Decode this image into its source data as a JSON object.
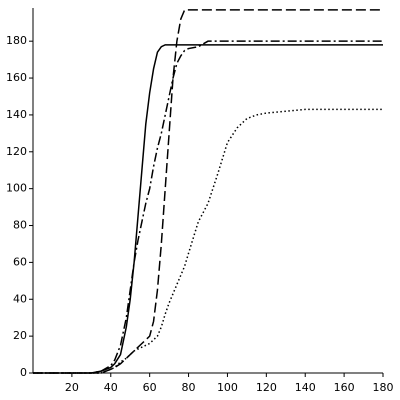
{
  "chart_data": {
    "type": "line",
    "x": [
      0,
      10,
      20,
      30,
      35,
      40,
      42,
      45,
      48,
      50,
      52,
      54,
      56,
      58,
      60,
      62,
      64,
      66,
      68,
      70,
      72,
      74,
      76,
      78,
      80,
      85,
      90,
      95,
      100,
      105,
      110,
      115,
      120,
      130,
      140,
      150,
      160,
      170,
      180
    ],
    "series": [
      {
        "color": "#000000",
        "dash": "solid",
        "values": [
          0,
          0,
          0,
          0,
          1,
          3,
          5,
          10,
          25,
          40,
          60,
          85,
          110,
          135,
          152,
          165,
          174,
          177,
          178,
          178,
          178,
          178,
          178,
          178,
          178,
          178,
          178,
          178,
          178,
          178,
          178,
          178,
          178,
          178,
          178,
          178,
          178,
          178,
          178
        ]
      },
      {
        "color": "#000000",
        "dash": "dashdot",
        "values": [
          0,
          0,
          0,
          0,
          1,
          4,
          7,
          15,
          30,
          45,
          60,
          72,
          82,
          92,
          100,
          112,
          122,
          130,
          140,
          150,
          160,
          168,
          172,
          175,
          176,
          177,
          180,
          180,
          180,
          180,
          180,
          180,
          180,
          180,
          180,
          180,
          180,
          180,
          180
        ]
      },
      {
        "color": "#000000",
        "dash": "dash",
        "values": [
          0,
          0,
          0,
          0,
          0,
          2,
          3,
          5,
          8,
          10,
          12,
          14,
          16,
          18,
          20,
          28,
          45,
          70,
          100,
          130,
          160,
          180,
          192,
          197,
          197,
          197,
          197,
          197,
          197,
          197,
          197,
          197,
          197,
          197,
          197,
          197,
          197,
          197,
          197
        ]
      },
      {
        "color": "#000000",
        "dash": "dot",
        "values": [
          0,
          0,
          0,
          0,
          0,
          2,
          3,
          6,
          8,
          10,
          12,
          13,
          14,
          15,
          16,
          18,
          20,
          25,
          32,
          38,
          43,
          48,
          53,
          58,
          65,
          82,
          92,
          108,
          125,
          133,
          138,
          140,
          141,
          142,
          143,
          143,
          143,
          143,
          143
        ]
      }
    ],
    "xlim": [
      0,
      180
    ],
    "ylim": [
      0,
      198
    ],
    "xticks": [
      20,
      40,
      60,
      80,
      100,
      120,
      140,
      160,
      180
    ],
    "yticks": [
      0,
      20,
      40,
      60,
      80,
      100,
      120,
      140,
      160,
      180
    ]
  }
}
